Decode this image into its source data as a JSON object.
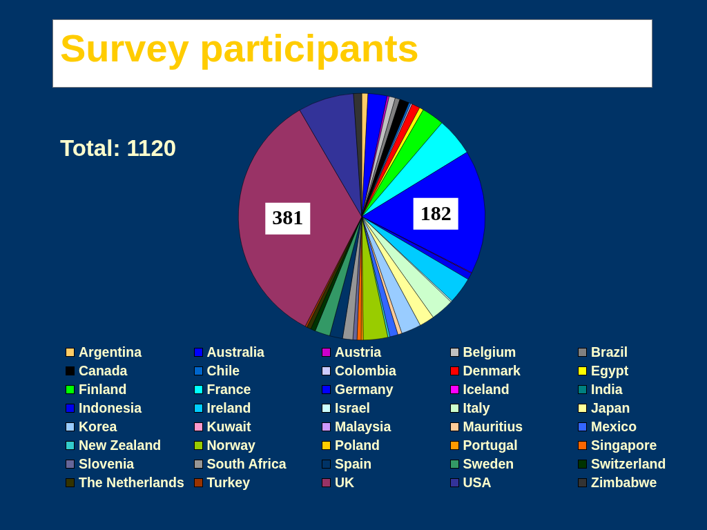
{
  "chart_data": {
    "type": "pie",
    "title": "Survey participants",
    "annotations": [
      "Total: 1120"
    ],
    "categories": [
      "Argentina",
      "Australia",
      "Austria",
      "Belgium",
      "Brazil",
      "Canada",
      "Chile",
      "Colombia",
      "Denmark",
      "Egypt",
      "Finland",
      "France",
      "Germany",
      "Iceland",
      "India",
      "Indonesia",
      "Ireland",
      "Israel",
      "Italy",
      "Japan",
      "Korea",
      "Kuwait",
      "Malaysia",
      "Mauritius",
      "Mexico",
      "New Zealand",
      "Norway",
      "Poland",
      "Portugal",
      "Singapore",
      "Slovenia",
      "South Africa",
      "Spain",
      "Sweden",
      "Switzerland",
      "The Netherlands",
      "Turkey",
      "UK",
      "USA",
      "Zimbabwe"
    ],
    "values": [
      9,
      28,
      3,
      9,
      7,
      14,
      3,
      2,
      12,
      6,
      33,
      56,
      182,
      1,
      null,
      10,
      39,
      2,
      34,
      22,
      29,
      null,
      null,
      6,
      12,
      3,
      36,
      null,
      3,
      6,
      6,
      15,
      19,
      22,
      7,
      6,
      3,
      381,
      82,
      12
    ],
    "colors": [
      "#ffcc66",
      "#0000ff",
      "#cc00cc",
      "#c0c0c0",
      "#808080",
      "#000000",
      "#0066cc",
      "#ccccff",
      "#ff0000",
      "#ffff00",
      "#00ff00",
      "#00ffff",
      "#0000ff",
      "#ff00ff",
      "#008080",
      "#0000ee",
      "#00ccff",
      "#ccffff",
      "#ccffcc",
      "#ffff99",
      "#99ccff",
      "#ff99cc",
      "#cc99ff",
      "#ffcc99",
      "#3366ff",
      "#33cccc",
      "#99cc00",
      "#ffcc00",
      "#ff9900",
      "#ff6600",
      "#666699",
      "#969696",
      "#003366",
      "#339966",
      "#003300",
      "#333300",
      "#993300",
      "#993366",
      "#333399",
      "#333333"
    ],
    "value_labels": [
      null,
      null,
      null,
      null,
      null,
      null,
      null,
      null,
      null,
      null,
      null,
      null,
      "182",
      null,
      null,
      null,
      null,
      null,
      null,
      null,
      null,
      null,
      null,
      null,
      null,
      null,
      null,
      null,
      null,
      null,
      null,
      null,
      null,
      null,
      null,
      null,
      null,
      "381",
      null,
      null
    ],
    "legend": "bottom"
  }
}
